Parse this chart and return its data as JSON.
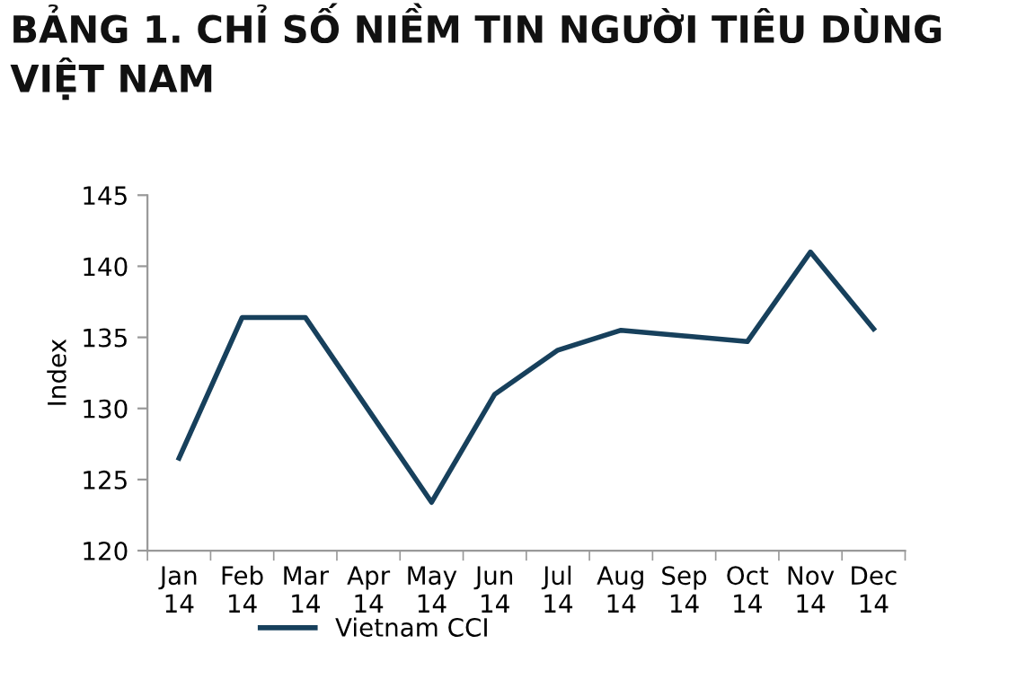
{
  "chart_data": {
    "type": "line",
    "title": "BẢNG 1. CHỈ SỐ NIỀM TIN NGƯỜI TIÊU DÙNG\nVIỆT NAM",
    "ylabel": "Index",
    "categories": [
      "Jan\n14",
      "Feb\n14",
      "Mar\n14",
      "Apr\n14",
      "May\n14",
      "Jun\n14",
      "Jul\n14",
      "Aug\n14",
      "Sep\n14",
      "Oct\n14",
      "Nov\n14",
      "Dec\n14"
    ],
    "series": [
      {
        "name": "Vietnam CCI",
        "color": "#17405c",
        "values": [
          126.5,
          136.4,
          136.4,
          129.9,
          123.4,
          131.0,
          134.1,
          135.5,
          135.1,
          134.7,
          141.0,
          135.6
        ]
      }
    ],
    "ylim": [
      120,
      145
    ],
    "yticks": [
      120,
      125,
      130,
      135,
      140,
      145
    ],
    "grid": false,
    "legend": "bottom",
    "marker": "none",
    "line_style": "solid"
  }
}
